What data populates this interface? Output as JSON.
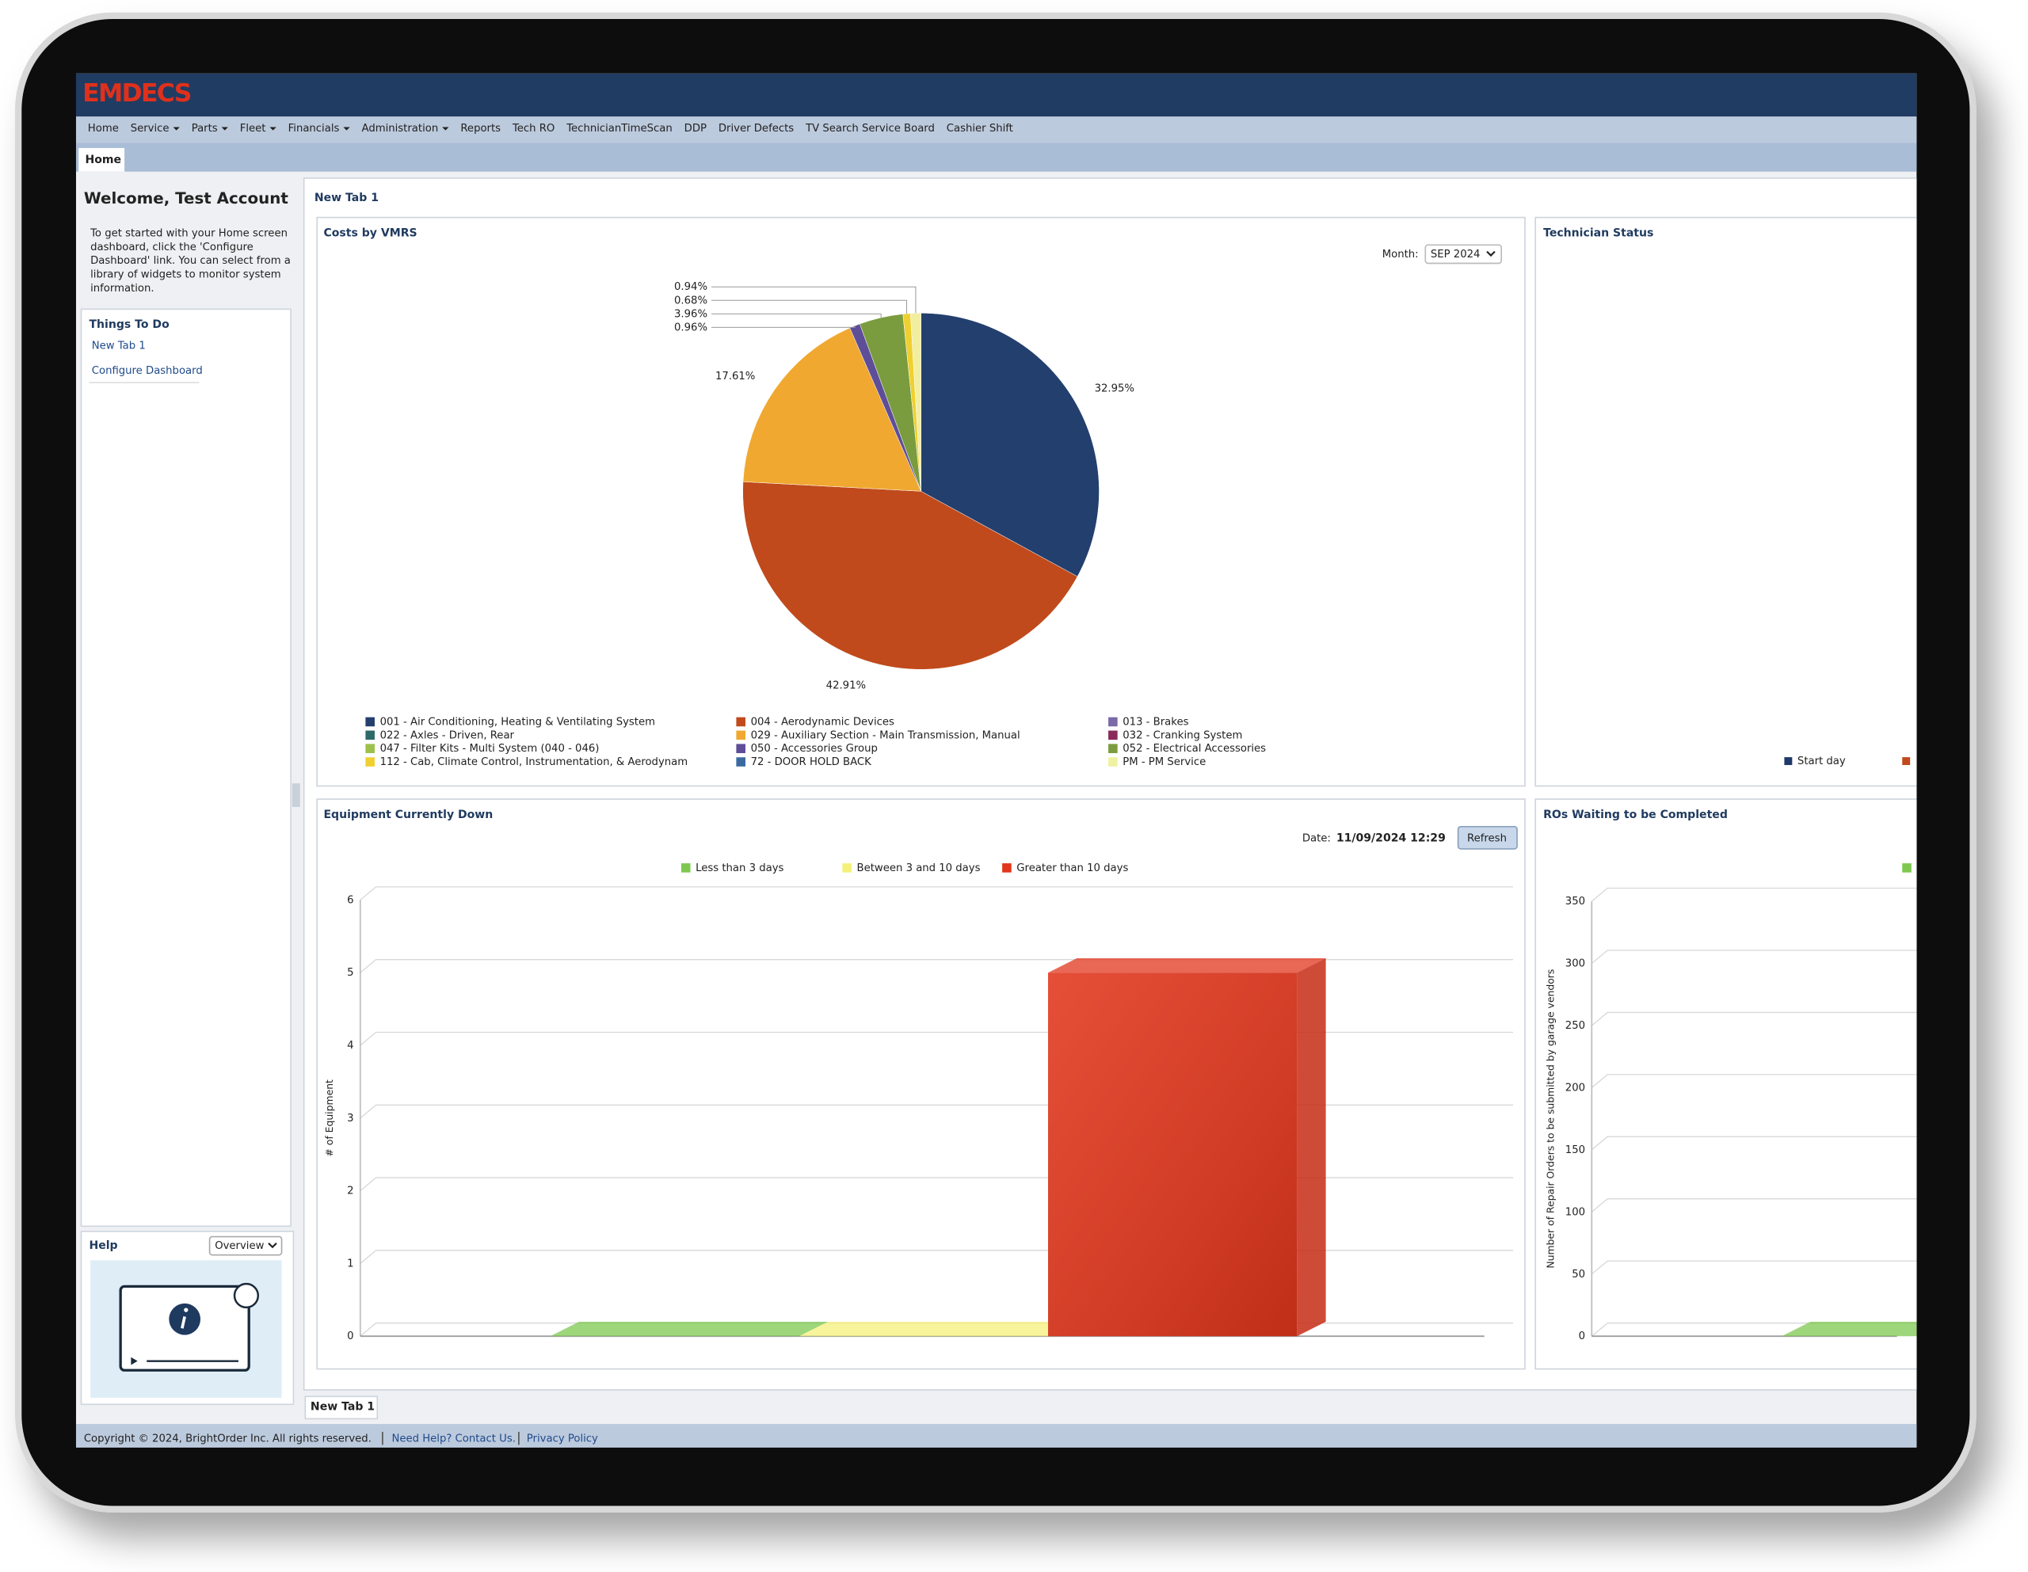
{
  "header": {
    "logo": "EMDECS"
  },
  "nav": [
    {
      "label": "Home"
    },
    {
      "label": "Service",
      "menu": true
    },
    {
      "label": "Parts",
      "menu": true
    },
    {
      "label": "Fleet",
      "menu": true
    },
    {
      "label": "Financials",
      "menu": true
    },
    {
      "label": "Administration",
      "menu": true
    },
    {
      "label": "Reports"
    },
    {
      "label": "Tech RO"
    },
    {
      "label": "TechnicianTimeScan"
    },
    {
      "label": "DDP"
    },
    {
      "label": "Driver Defects"
    },
    {
      "label": "TV Search Service Board"
    },
    {
      "label": "Cashier Shift"
    }
  ],
  "tabs": {
    "active": "Home"
  },
  "sidebar": {
    "welcome": "Welcome, Test Account",
    "intro": [
      "To get started with your Home screen",
      "dashboard, click the 'Configure",
      "Dashboard' link. You can select from a",
      "library of widgets to monitor system",
      "information."
    ],
    "todo_title": "Things To Do",
    "todo_links": [
      "New Tab 1",
      "Configure Dashboard"
    ],
    "help_title": "Help",
    "help_select": "Overview"
  },
  "dashboard": {
    "title": "New Tab 1",
    "bottom_tab": "New Tab 1"
  },
  "technician_status": {
    "title": "Technician Status",
    "legend": [
      {
        "name": "Start day",
        "color": "#1f3a6b"
      }
    ]
  },
  "chart_data": [
    {
      "type": "pie",
      "title": "Costs by VMRS",
      "month_label": "Month:",
      "month": "SEP 2024",
      "values": [
        32.95,
        42.91,
        17.61,
        0.96,
        3.96,
        0.68,
        0.94
      ],
      "value_labels": [
        "32.95%",
        "42.91%",
        "17.61%",
        "0.96%",
        "3.96%",
        "0.68%",
        "0.94%"
      ],
      "colors": [
        "#233f6e",
        "#c04a1c",
        "#f0a830",
        "#5e4e98",
        "#7a9c3e",
        "#f0d030",
        "#f2eea0"
      ],
      "legend": [
        {
          "name": "001 - Air Conditioning, Heating & Ventilating System",
          "color": "#233f6e"
        },
        {
          "name": "004 - Aerodynamic Devices",
          "color": "#c04a1c"
        },
        {
          "name": "013 - Brakes",
          "color": "#7a6aa8"
        },
        {
          "name": "022 - Axles - Driven, Rear",
          "color": "#2e6a6a"
        },
        {
          "name": "029 - Auxiliary Section - Main Transmission, Manual",
          "color": "#f0a830"
        },
        {
          "name": "032 - Cranking System",
          "color": "#8a2a5a"
        },
        {
          "name": "047 - Filter Kits - Multi System (040 - 046)",
          "color": "#9cc04a"
        },
        {
          "name": "050 - Accessories Group",
          "color": "#5e4e98"
        },
        {
          "name": "052 - Electrical Accessories",
          "color": "#7a9c3e"
        },
        {
          "name": "112 - Cab, Climate Control, Instrumentation, & Aerodynam",
          "color": "#f0d030"
        },
        {
          "name": "72 - DOOR HOLD BACK",
          "color": "#3a6aa0"
        },
        {
          "name": "PM - PM Service",
          "color": "#eef2a0"
        }
      ]
    },
    {
      "type": "bar3d",
      "title": "Equipment Currently Down",
      "date_label": "Date:",
      "date": "11/09/2024 12:29",
      "button": "Refresh",
      "ylabel": "# of Equipment",
      "ylim": [
        0,
        6
      ],
      "yticks": [
        0,
        1,
        2,
        3,
        4,
        5,
        6
      ],
      "grid": true,
      "series": [
        {
          "name": "Less than 3 days",
          "color": "#7ec850",
          "values": [
            0
          ]
        },
        {
          "name": "Between 3 and 10 days",
          "color": "#f5f07a",
          "values": [
            0
          ]
        },
        {
          "name": "Greater than 10 days",
          "color": "#e2361c",
          "values": [
            5
          ]
        }
      ]
    },
    {
      "type": "bar3d",
      "title": "ROs Waiting to be Completed",
      "ylabel": "Number of Repair Orders to be submitted by garage vendors",
      "ylim": [
        0,
        350
      ],
      "yticks": [
        0,
        50,
        100,
        150,
        200,
        250,
        300,
        350
      ],
      "grid": true,
      "series": [
        {
          "color": "#7ec850",
          "values": [
            0
          ]
        }
      ]
    }
  ],
  "footer": {
    "copyright": "Copyright © 2024, BrightOrder Inc. All rights reserved.",
    "links": [
      "Need Help? Contact Us.",
      "Privacy Policy"
    ]
  }
}
